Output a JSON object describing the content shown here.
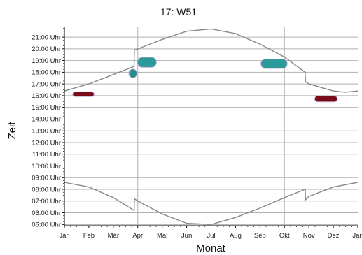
{
  "chart_data": {
    "type": "area",
    "title": "17: W51",
    "xlabel": "Monat",
    "ylabel": "Zeit",
    "x_ticks": [
      "Jan",
      "Feb",
      "Mär",
      "Apr",
      "Mai",
      "Jun",
      "Jul",
      "Aug",
      "Sep",
      "Okt",
      "Nov",
      "Dez",
      "Jan"
    ],
    "y_ticks": [
      "05:00 Uhr",
      "06:00 Uhr",
      "07:00 Uhr",
      "08:00 Uhr",
      "09:00 Uhr",
      "10:00 Uhr",
      "11:00 Uhr",
      "12:00 Uhr",
      "13:00 Uhr",
      "14:00 Uhr",
      "15:00 Uhr",
      "16:00 Uhr",
      "17:00 Uhr",
      "18:00 Uhr",
      "19:00 Uhr",
      "20:00 Uhr",
      "21:00 Uhr"
    ],
    "xlim": [
      0,
      12
    ],
    "ylim": [
      4.9,
      21.9
    ],
    "grid": true,
    "series": [
      {
        "points": [
          [
            0,
            16.4
          ],
          [
            1,
            17.0
          ],
          [
            2,
            17.8
          ],
          [
            2.85,
            18.5
          ],
          [
            2.86,
            19.9
          ],
          [
            3,
            20.0
          ],
          [
            4,
            20.8
          ],
          [
            5,
            21.5
          ],
          [
            6,
            21.7
          ],
          [
            7,
            21.3
          ],
          [
            8,
            20.4
          ],
          [
            9,
            19.3
          ],
          [
            9.85,
            18.0
          ],
          [
            9.86,
            17.2
          ],
          [
            10,
            17.0
          ],
          [
            11,
            16.4
          ],
          [
            11.5,
            16.3
          ],
          [
            12,
            16.4
          ]
        ]
      },
      {
        "points": [
          [
            0,
            8.6
          ],
          [
            1,
            8.2
          ],
          [
            2,
            7.3
          ],
          [
            2.85,
            6.2
          ],
          [
            2.86,
            7.2
          ],
          [
            3,
            7.0
          ],
          [
            4,
            5.9
          ],
          [
            5,
            5.1
          ],
          [
            6,
            5.0
          ],
          [
            7,
            5.6
          ],
          [
            8,
            6.4
          ],
          [
            9,
            7.3
          ],
          [
            9.85,
            8.0
          ],
          [
            9.86,
            7.1
          ],
          [
            10,
            7.4
          ],
          [
            11,
            8.2
          ],
          [
            12,
            8.6
          ]
        ]
      }
    ],
    "blobs": [
      {
        "x0": 0.35,
        "x1": 1.2,
        "y0": 15.95,
        "y1": 16.3,
        "color": "#7a0c1a"
      },
      {
        "x0": 2.65,
        "x1": 2.95,
        "y0": 17.55,
        "y1": 18.25,
        "color": "#2a8b8b"
      },
      {
        "x0": 3.0,
        "x1": 3.75,
        "y0": 18.45,
        "y1": 19.25,
        "color": "#2a9a9a"
      },
      {
        "x0": 8.05,
        "x1": 9.1,
        "y0": 18.35,
        "y1": 19.1,
        "color": "#2a9a9a"
      },
      {
        "x0": 10.25,
        "x1": 11.15,
        "y0": 15.5,
        "y1": 15.95,
        "color": "#7a0c1a"
      }
    ],
    "colors": {
      "line": "#888888",
      "grid": "#b0b0b0",
      "axis": "#000000"
    }
  }
}
